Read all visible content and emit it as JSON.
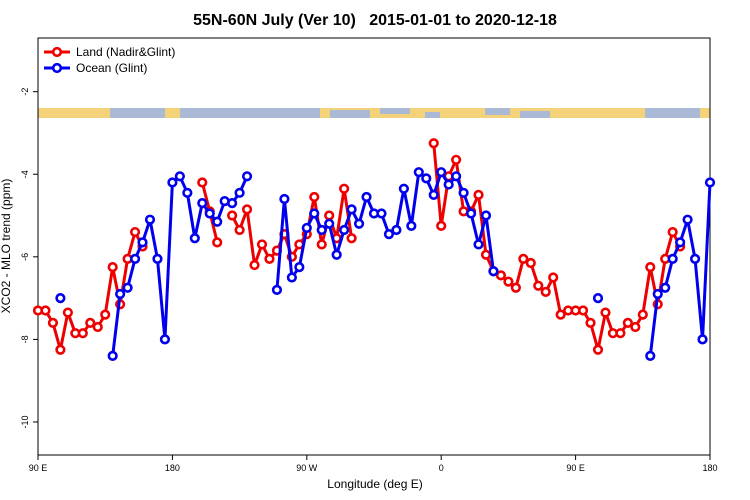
{
  "chart_data": {
    "type": "line",
    "title": "55N-60N July (Ver 10)   2015-01-01 to 2020-12-18",
    "xlabel": "Longitude (deg E)",
    "ylabel": "XCO2 - MLO trend (ppm)",
    "x": [
      90,
      95,
      100,
      105,
      110,
      115,
      120,
      125,
      130,
      135,
      140,
      145,
      150,
      155,
      160,
      165,
      170,
      175,
      180,
      185,
      190,
      195,
      200,
      205,
      210,
      215,
      220,
      225,
      230,
      235,
      240,
      245,
      250,
      255,
      260,
      265,
      270,
      275,
      280,
      285,
      290,
      295,
      300,
      305,
      310,
      315,
      320,
      325,
      330,
      335,
      340,
      345,
      350,
      355,
      360,
      365,
      370,
      375,
      380,
      385,
      390,
      395,
      400,
      405,
      410,
      415,
      420,
      425,
      430,
      435,
      440,
      445,
      450,
      455,
      460,
      465,
      470,
      475,
      480,
      485,
      490,
      495,
      500,
      505,
      510,
      515,
      520,
      525,
      530,
      535,
      540
    ],
    "series": [
      {
        "name": "Land (Nadir&Glint)",
        "color": "#ee0000",
        "values": [
          -7.3,
          -7.3,
          -7.6,
          -8.25,
          -7.35,
          -7.85,
          -7.85,
          -7.6,
          -7.7,
          -7.4,
          -6.25,
          -7.15,
          -6.05,
          -5.4,
          -5.75,
          null,
          null,
          null,
          null,
          null,
          null,
          null,
          -4.2,
          -4.9,
          -5.65,
          null,
          -5.0,
          -5.35,
          -4.85,
          -6.2,
          -5.7,
          -6.05,
          -5.85,
          -5.45,
          -6.0,
          -5.7,
          -5.45,
          -4.55,
          -5.7,
          -5.0,
          -5.55,
          -4.35,
          -5.55,
          null,
          null,
          null,
          null,
          null,
          null,
          null,
          null,
          null,
          null,
          -3.25,
          -5.25,
          -4.05,
          -3.65,
          -4.9,
          -4.9,
          -4.5,
          -5.95,
          -6.35,
          -6.45,
          -6.6,
          -6.75,
          -6.05,
          -6.15,
          -6.7,
          -6.85,
          -6.5,
          -7.4,
          -7.3,
          -7.3,
          -7.3,
          -7.6,
          -8.25,
          -7.35,
          -7.85,
          -7.85,
          -7.6,
          -7.7,
          -7.4,
          -6.25,
          -7.15,
          -6.05,
          -5.4,
          -5.75,
          null,
          null,
          null,
          null
        ]
      },
      {
        "name": "Ocean (Glint)",
        "color": "#0000ee",
        "values": [
          null,
          null,
          null,
          -7.0,
          null,
          null,
          null,
          null,
          null,
          null,
          -8.4,
          -6.9,
          -6.75,
          -6.05,
          -5.65,
          -5.1,
          -6.05,
          -8.0,
          -4.2,
          -4.05,
          -4.45,
          -5.55,
          -4.7,
          -4.95,
          -5.15,
          -4.65,
          -4.7,
          -4.45,
          -4.05,
          null,
          null,
          null,
          -6.8,
          -4.6,
          -6.5,
          -6.25,
          -5.3,
          -4.95,
          -5.35,
          -5.2,
          -5.95,
          -5.35,
          -4.85,
          -5.2,
          -4.55,
          -4.95,
          -4.95,
          -5.45,
          -5.35,
          -4.35,
          -5.25,
          -3.95,
          -4.1,
          -4.5,
          -3.95,
          -4.25,
          -4.05,
          -4.45,
          -4.95,
          -5.7,
          -5.0,
          -6.35,
          null,
          null,
          null,
          null,
          null,
          null,
          null,
          null,
          null,
          null,
          null,
          null,
          null,
          -7.0,
          null,
          null,
          null,
          null,
          null,
          null,
          -8.4,
          -6.9,
          -6.75,
          -6.05,
          -5.65,
          -5.1,
          -6.05,
          -8.0,
          -4.2
        ]
      }
    ],
    "xlim": [
      90,
      540
    ],
    "ylim": [
      -10.8,
      -0.7
    ],
    "xticks": [
      {
        "value": 90,
        "label": "90 E"
      },
      {
        "value": 180,
        "label": "180"
      },
      {
        "value": 270,
        "label": "90 W"
      },
      {
        "value": 360,
        "label": "0"
      },
      {
        "value": 450,
        "label": "90 E"
      },
      {
        "value": 540,
        "label": "180"
      }
    ],
    "yticks": [
      -2,
      -4,
      -6,
      -8,
      -10
    ],
    "legend": "topleft",
    "grid": false
  }
}
